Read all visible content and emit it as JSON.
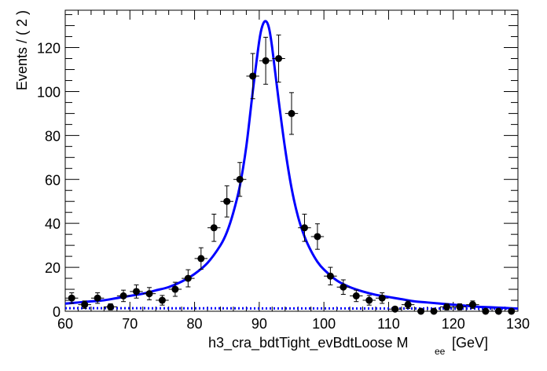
{
  "chart_data": {
    "type": "scatter",
    "title": "",
    "xlabel": "h3_cra_bdtTight_evBdtLoose  M",
    "xlabel_sub": "ee",
    "xlabel_unit": "[GeV]",
    "ylabel": "Events / ( 2 )",
    "xlim": [
      60,
      130
    ],
    "ylim": [
      0,
      137
    ],
    "grid": false,
    "legend": "none",
    "x_ticks": [
      60,
      70,
      80,
      90,
      100,
      110,
      120,
      130
    ],
    "x_tick_labels": [
      "60",
      "70",
      "80",
      "90",
      "100",
      "110",
      "120",
      "130"
    ],
    "y_ticks": [
      0,
      20,
      40,
      60,
      80,
      100,
      120
    ],
    "y_tick_labels": [
      "0",
      "20",
      "40",
      "60",
      "80",
      "100",
      "120"
    ],
    "bin_half_width": 1,
    "series": [
      {
        "kind": "data-points",
        "x": [
          61,
          63,
          65,
          67,
          69,
          71,
          73,
          75,
          77,
          79,
          81,
          83,
          85,
          87,
          89,
          91,
          93,
          95,
          97,
          99,
          101,
          103,
          105,
          107,
          109,
          111,
          113,
          115,
          117,
          119,
          121,
          123,
          125,
          127,
          129
        ],
        "y": [
          6,
          3,
          6,
          2,
          7,
          9,
          8,
          5,
          10,
          15,
          24,
          38,
          50,
          60,
          107,
          114,
          115,
          90,
          38,
          34,
          16,
          11,
          7,
          5,
          6,
          1,
          3,
          0,
          0,
          2,
          2,
          3,
          0,
          0,
          0
        ],
        "yerr": [
          2.4,
          1.7,
          2.4,
          1.4,
          2.6,
          3.0,
          2.8,
          2.2,
          3.2,
          3.9,
          4.9,
          6.2,
          7.1,
          7.7,
          10.3,
          10.7,
          10.7,
          9.5,
          6.2,
          5.8,
          4.0,
          3.3,
          2.6,
          2.2,
          2.4,
          1.0,
          1.7,
          1.0,
          1.0,
          1.4,
          1.4,
          1.7,
          1.0,
          1.0,
          1.0
        ],
        "color": "#000000"
      },
      {
        "kind": "fit-total",
        "color": "#0000ff",
        "x": [
          60,
          62,
          64,
          66,
          68,
          70,
          72,
          74,
          76,
          78,
          80,
          82,
          84,
          85,
          86,
          87,
          88,
          89,
          90,
          90.5,
          91,
          91.5,
          92,
          93,
          94,
          95,
          96,
          97,
          98,
          99,
          100,
          102,
          104,
          106,
          108,
          110,
          112,
          114,
          116,
          118,
          120,
          122,
          124,
          126,
          128,
          130
        ],
        "y": [
          3.5,
          4,
          4.5,
          5,
          6,
          7,
          8,
          9.5,
          11,
          13.5,
          17,
          22,
          30,
          36,
          45,
          57,
          75,
          100,
          123,
          130,
          132,
          129,
          120,
          96,
          74,
          56,
          43,
          34,
          27.5,
          22.5,
          19,
          14,
          11,
          9,
          7.5,
          6.5,
          5.5,
          4.5,
          4,
          3.5,
          3,
          2.5,
          2,
          1.8,
          1.5,
          1.2
        ]
      },
      {
        "kind": "fit-background",
        "color": "#0000ff",
        "style": "dotted",
        "x": [
          60,
          130
        ],
        "y": [
          1.4,
          1.2
        ]
      }
    ]
  }
}
